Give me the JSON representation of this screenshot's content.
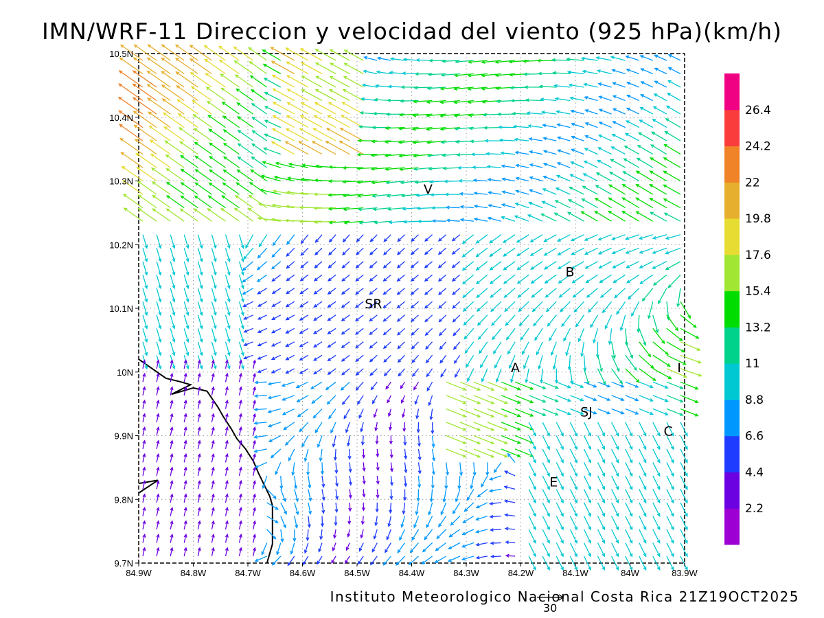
{
  "title": "IMN/WRF-11 Direccion y velocidad del viento (925 hPa)(km/h)",
  "footer": "Instituto Meteorologico Nacional Costa Rica 21Z19OCT2025",
  "reference_vector_label": "30",
  "map": {
    "lon_range": [
      -84.9,
      -83.9
    ],
    "lat_range": [
      9.7,
      10.5
    ],
    "x_ticks": [
      "84.9W",
      "84.8W",
      "84.7W",
      "84.6W",
      "84.5W",
      "84.4W",
      "84.3W",
      "84.2W",
      "84.1W",
      "84W",
      "83.9W"
    ],
    "y_ticks": [
      "9.7N",
      "9.8N",
      "9.9N",
      "10N",
      "10.1N",
      "10.2N",
      "10.3N",
      "10.4N",
      "10.5N"
    ],
    "grid": "dotted"
  },
  "colorbar": {
    "labels": [
      "2.2",
      "4.4",
      "6.6",
      "8.8",
      "11",
      "13.2",
      "15.4",
      "17.6",
      "19.8",
      "22",
      "24.2",
      "26.4"
    ],
    "colors": [
      "#9c00d2",
      "#6b00e0",
      "#1e3cff",
      "#0098ff",
      "#00c8d2",
      "#00d28c",
      "#00dc00",
      "#a0e632",
      "#e6dc32",
      "#e6af2d",
      "#f08228",
      "#fa3c3c",
      "#f00082"
    ]
  },
  "places": [
    {
      "label": "V",
      "lon": -84.37,
      "lat": 10.28
    },
    {
      "label": "B",
      "lon": -84.11,
      "lat": 10.15
    },
    {
      "label": "SR",
      "lon": -84.47,
      "lat": 10.1
    },
    {
      "label": "A",
      "lon": -84.21,
      "lat": 10.0
    },
    {
      "label": "I",
      "lon": -83.91,
      "lat": 10.0
    },
    {
      "label": "SJ",
      "lon": -84.08,
      "lat": 9.93
    },
    {
      "label": "C",
      "lon": -83.93,
      "lat": 9.9
    },
    {
      "label": "E",
      "lon": -84.14,
      "lat": 9.82
    }
  ],
  "coastline": [
    [
      [
        -84.9,
        10.02
      ],
      [
        -84.85,
        9.99
      ],
      [
        -84.825,
        9.985
      ],
      [
        -84.805,
        9.98
      ],
      [
        -84.84,
        9.965
      ],
      [
        -84.8,
        9.975
      ],
      [
        -84.775,
        9.97
      ],
      [
        -84.755,
        9.945
      ],
      [
        -84.745,
        9.93
      ],
      [
        -84.73,
        9.91
      ],
      [
        -84.72,
        9.895
      ],
      [
        -84.705,
        9.88
      ],
      [
        -84.69,
        9.86
      ],
      [
        -84.68,
        9.84
      ],
      [
        -84.66,
        9.805
      ],
      [
        -84.655,
        9.79
      ],
      [
        -84.655,
        9.73
      ],
      [
        -84.665,
        9.7
      ]
    ],
    [
      [
        -84.9,
        9.825
      ],
      [
        -84.865,
        9.83
      ],
      [
        -84.9,
        9.81
      ]
    ]
  ]
}
